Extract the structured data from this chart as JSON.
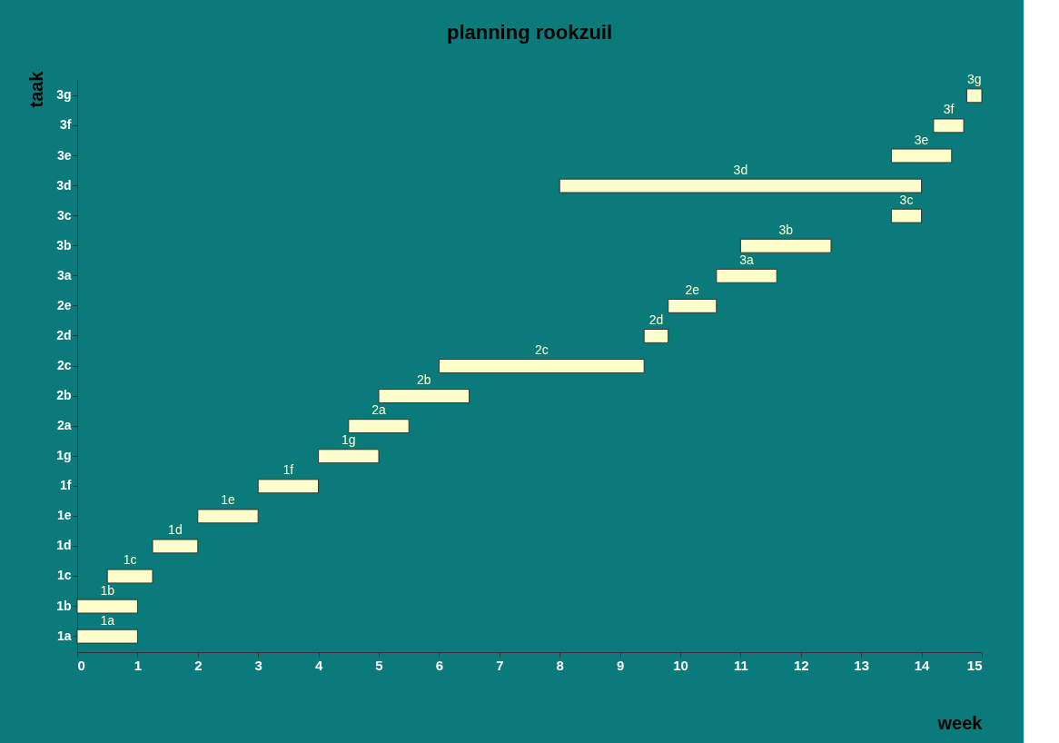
{
  "chart_data": {
    "type": "bar",
    "orientation": "horizontal",
    "title": "planning rookzuil",
    "xlabel": "week",
    "ylabel": "taak",
    "categories": [
      "3g",
      "3f",
      "3e",
      "3d",
      "3c",
      "3b",
      "3a",
      "2e",
      "2d",
      "2c",
      "2b",
      "2a",
      "1g",
      "1f",
      "1e",
      "1d",
      "1c",
      "1b",
      "1a"
    ],
    "base": [
      14.75,
      14.2,
      13.5,
      8,
      13.5,
      11,
      10.6,
      9.8,
      9.4,
      6,
      5,
      4.5,
      4,
      3,
      2,
      1.25,
      0.5,
      0,
      0
    ],
    "values": [
      0.25,
      0.5,
      1,
      6,
      0.5,
      1.5,
      1,
      0.8,
      0.4,
      3.4,
      1.5,
      1,
      1,
      1,
      1,
      0.75,
      0.75,
      1,
      1
    ],
    "color": "#ffffcc",
    "xlim": [
      0,
      15
    ],
    "xticks": [
      0,
      1,
      2,
      3,
      4,
      5,
      6,
      7,
      8,
      9,
      10,
      11,
      12,
      13,
      14,
      15
    ],
    "grid": false,
    "annotations": [
      "3g",
      "3f",
      "3e",
      "3d",
      "3c",
      "3b",
      "3a",
      "2e",
      "2d",
      "2c",
      "2b",
      "2a",
      "1g",
      "1f",
      "1e",
      "1d",
      "1c",
      "1b",
      "1a"
    ]
  }
}
